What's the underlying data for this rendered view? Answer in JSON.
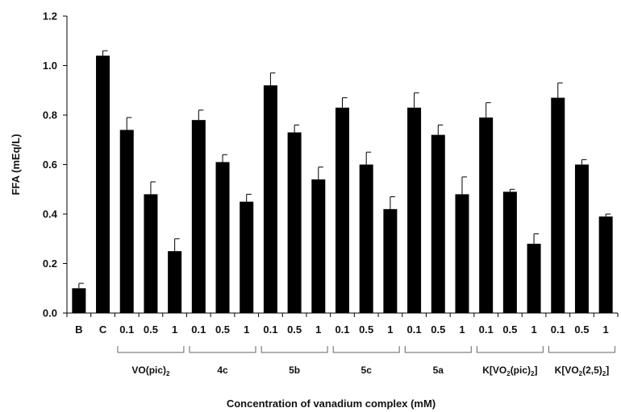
{
  "chart_data": {
    "type": "bar",
    "xlabel": "Concentration of vanadium complex (mM)",
    "ylabel": "FFA (mEq/L)",
    "ylim": [
      0,
      1.2
    ],
    "yticks": [
      "0.0",
      "0.2",
      "0.4",
      "0.6",
      "0.8",
      "1.0",
      "1.2"
    ],
    "grid": false,
    "color": "#000000",
    "categories": [
      "B",
      "C",
      "0.1",
      "0.5",
      "1",
      "0.1",
      "0.5",
      "1",
      "0.1",
      "0.5",
      "1",
      "0.1",
      "0.5",
      "1",
      "0.1",
      "0.5",
      "1",
      "0.1",
      "0.5",
      "1",
      "0.1",
      "0.5",
      "1"
    ],
    "values": [
      0.1,
      1.04,
      0.74,
      0.48,
      0.25,
      0.78,
      0.61,
      0.45,
      0.92,
      0.73,
      0.54,
      0.83,
      0.6,
      0.42,
      0.83,
      0.72,
      0.48,
      0.79,
      0.49,
      0.28,
      0.87,
      0.6,
      0.39
    ],
    "errors": [
      0.02,
      0.02,
      0.05,
      0.05,
      0.05,
      0.04,
      0.03,
      0.03,
      0.05,
      0.03,
      0.05,
      0.04,
      0.05,
      0.05,
      0.06,
      0.04,
      0.07,
      0.06,
      0.01,
      0.04,
      0.06,
      0.02,
      0.01
    ],
    "groups": [
      {
        "label": "VO(pic)",
        "sub": "2",
        "post": "",
        "start": 2,
        "end": 4
      },
      {
        "label": "4c",
        "sub": "",
        "post": "",
        "start": 5,
        "end": 7
      },
      {
        "label": "5b",
        "sub": "",
        "post": "",
        "start": 8,
        "end": 10
      },
      {
        "label": "5c",
        "sub": "",
        "post": "",
        "start": 11,
        "end": 13
      },
      {
        "label": "5a",
        "sub": "",
        "post": "",
        "start": 14,
        "end": 16
      },
      {
        "label": "K[VO",
        "sub": "2",
        "post": "(pic)",
        "sub2": "2",
        "post2": "]",
        "start": 17,
        "end": 19
      },
      {
        "label": "K[VO",
        "sub": "2",
        "post": "(2,5)",
        "sub2": "2",
        "post2": "]",
        "start": 20,
        "end": 22
      }
    ]
  }
}
